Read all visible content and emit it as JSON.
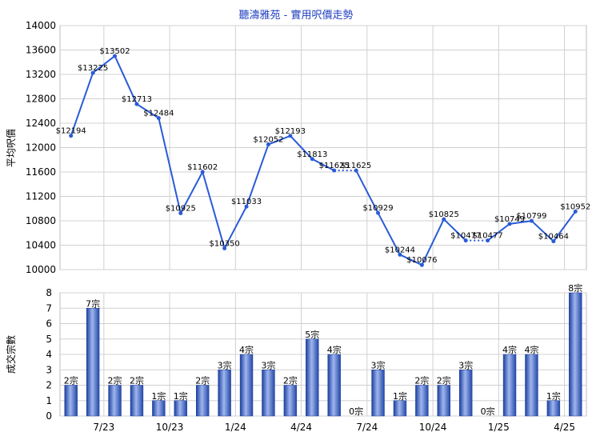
{
  "title": "聽濤雅苑 - 實用呎價走勢",
  "chart_data": [
    {
      "type": "line",
      "ylabel": "平均呎價",
      "ylim": [
        10000,
        14000
      ],
      "yticks": [
        10000,
        10400,
        10800,
        11200,
        11600,
        12000,
        12400,
        12800,
        13200,
        13600,
        14000
      ],
      "values": [
        12194,
        13225,
        13502,
        12713,
        12484,
        10925,
        11602,
        10350,
        11033,
        12052,
        12193,
        11813,
        11625,
        11625,
        10929,
        10244,
        10076,
        10825,
        10477,
        10477,
        10749,
        10799,
        10464,
        10952
      ],
      "labels": [
        "$12194",
        "$13225",
        "$13502",
        "$12713",
        "$12484",
        "$10925",
        "$11602",
        "$10350",
        "$11033",
        "$12052",
        "$12193",
        "$11813",
        "$11625",
        "$11625",
        "$10929",
        "$10244",
        "$10076",
        "$10825",
        "$10477",
        "$10477",
        "$10749",
        "$10799",
        "$10464",
        "$10952"
      ],
      "interpolated_segments": [
        [
          12,
          13
        ],
        [
          18,
          19
        ]
      ],
      "line_color": "#2a5bd7"
    },
    {
      "type": "bar",
      "ylabel": "成交宗數",
      "ylim": [
        0,
        8
      ],
      "yticks": [
        0,
        1,
        2,
        3,
        4,
        5,
        6,
        7,
        8
      ],
      "x_tick_labels": [
        "7/23",
        "10/23",
        "1/24",
        "4/24",
        "7/24",
        "10/24",
        "1/25",
        "4/25"
      ],
      "x_tick_positions": [
        2,
        5,
        8,
        11,
        14,
        17,
        20,
        23
      ],
      "values": [
        2,
        7,
        2,
        2,
        1,
        1,
        2,
        3,
        4,
        3,
        2,
        5,
        4,
        0,
        3,
        1,
        2,
        2,
        3,
        0,
        4,
        4,
        1,
        8
      ],
      "labels": [
        "2宗",
        "7宗",
        "2宗",
        "2宗",
        "1宗",
        "1宗",
        "2宗",
        "3宗",
        "4宗",
        "3宗",
        "2宗",
        "5宗",
        "4宗",
        "0宗",
        "3宗",
        "1宗",
        "2宗",
        "2宗",
        "3宗",
        "0宗",
        "4宗",
        "4宗",
        "1宗",
        "8宗"
      ],
      "bar_color": "#3a63c8"
    }
  ]
}
